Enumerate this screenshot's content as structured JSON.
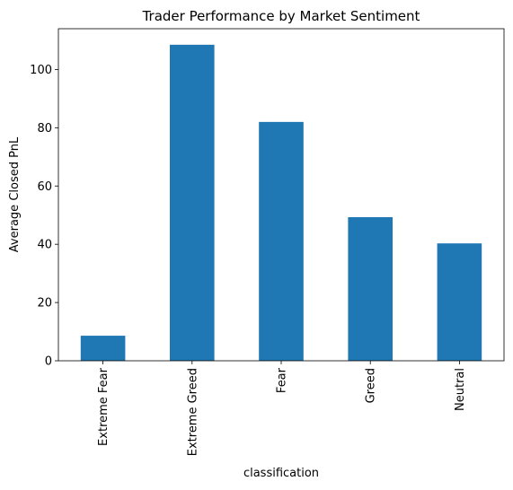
{
  "chart_data": {
    "type": "bar",
    "title": "Trader Performance by Market Sentiment",
    "xlabel": "classification",
    "ylabel": "Average Closed PnL",
    "categories": [
      "Extreme Fear",
      "Extreme Greed",
      "Fear",
      "Greed",
      "Neutral"
    ],
    "values": [
      8.6,
      108.5,
      82.0,
      49.3,
      40.3
    ],
    "ylim": [
      0,
      114
    ],
    "yticks": [
      0,
      20,
      40,
      60,
      80,
      100
    ],
    "bar_color": "#1f77b4",
    "grid": false,
    "legend": "none"
  }
}
